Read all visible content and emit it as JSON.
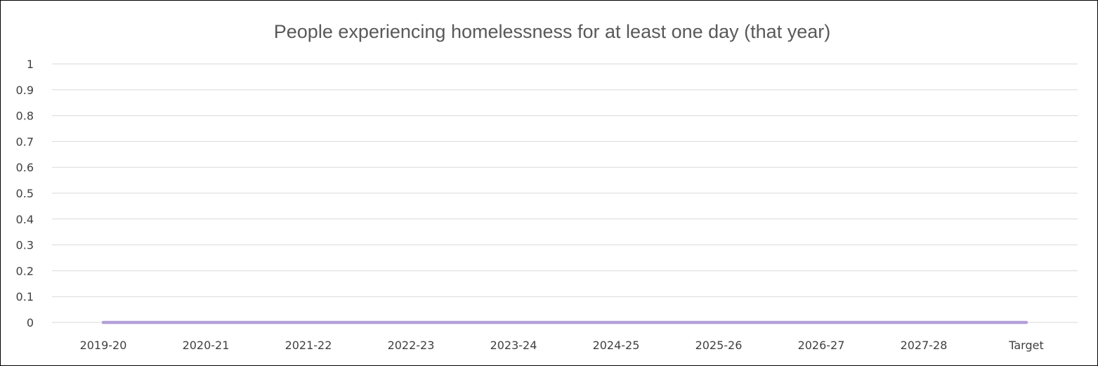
{
  "chart_data": {
    "type": "line",
    "title": "People experiencing homelessness for at least one day (that year)",
    "xlabel": "",
    "ylabel": "",
    "categories": [
      "2019-20",
      "2020-21",
      "2021-22",
      "2022-23",
      "2023-24",
      "2024-25",
      "2025-26",
      "2026-27",
      "2027-28",
      "Target"
    ],
    "y_ticks": [
      "0",
      "0.1",
      "0.2",
      "0.3",
      "0.4",
      "0.5",
      "0.6",
      "0.7",
      "0.8",
      "0.9",
      "1"
    ],
    "ylim": [
      0,
      1
    ],
    "grid": true,
    "legend": "none",
    "series": [
      {
        "values": [
          0,
          0,
          0,
          0,
          0,
          0,
          0,
          0,
          0,
          0
        ],
        "color": "#b4a0d8"
      }
    ],
    "colors": {
      "gridline": "#d9d9d9",
      "title": "#595959",
      "tick_label": "#404040"
    }
  }
}
